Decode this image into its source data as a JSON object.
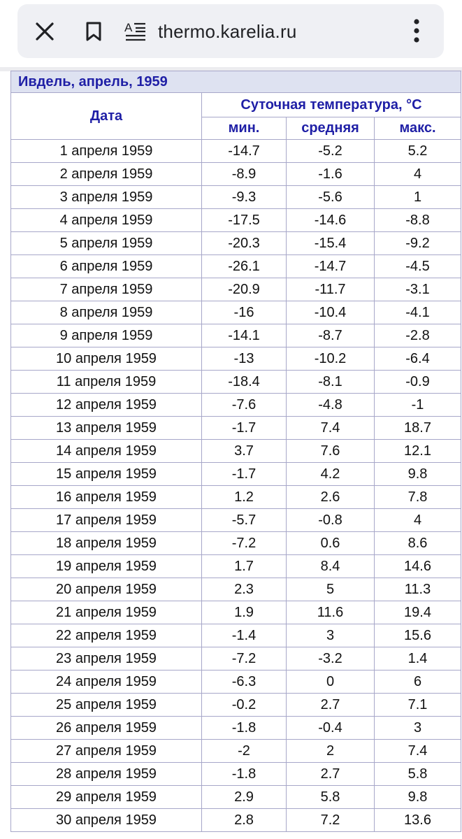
{
  "browser": {
    "url": "thermo.karelia.ru",
    "icons": {
      "close": "close-icon",
      "bookmark": "bookmark-icon",
      "reader": "reader-mode-icon",
      "menu": "more-vert-icon"
    }
  },
  "table": {
    "caption": "Ивдель, апрель, 1959",
    "headers": {
      "date": "Дата",
      "group": "Суточная температура, °C",
      "min": "мин.",
      "avg": "средняя",
      "max": "макс."
    },
    "rows": [
      {
        "date": "1 апреля 1959",
        "min": "-14.7",
        "avg": "-5.2",
        "max": "5.2"
      },
      {
        "date": "2 апреля 1959",
        "min": "-8.9",
        "avg": "-1.6",
        "max": "4"
      },
      {
        "date": "3 апреля 1959",
        "min": "-9.3",
        "avg": "-5.6",
        "max": "1"
      },
      {
        "date": "4 апреля 1959",
        "min": "-17.5",
        "avg": "-14.6",
        "max": "-8.8"
      },
      {
        "date": "5 апреля 1959",
        "min": "-20.3",
        "avg": "-15.4",
        "max": "-9.2"
      },
      {
        "date": "6 апреля 1959",
        "min": "-26.1",
        "avg": "-14.7",
        "max": "-4.5"
      },
      {
        "date": "7 апреля 1959",
        "min": "-20.9",
        "avg": "-11.7",
        "max": "-3.1"
      },
      {
        "date": "8 апреля 1959",
        "min": "-16",
        "avg": "-10.4",
        "max": "-4.1"
      },
      {
        "date": "9 апреля 1959",
        "min": "-14.1",
        "avg": "-8.7",
        "max": "-2.8"
      },
      {
        "date": "10 апреля 1959",
        "min": "-13",
        "avg": "-10.2",
        "max": "-6.4"
      },
      {
        "date": "11 апреля 1959",
        "min": "-18.4",
        "avg": "-8.1",
        "max": "-0.9"
      },
      {
        "date": "12 апреля 1959",
        "min": "-7.6",
        "avg": "-4.8",
        "max": "-1"
      },
      {
        "date": "13 апреля 1959",
        "min": "-1.7",
        "avg": "7.4",
        "max": "18.7"
      },
      {
        "date": "14 апреля 1959",
        "min": "3.7",
        "avg": "7.6",
        "max": "12.1"
      },
      {
        "date": "15 апреля 1959",
        "min": "-1.7",
        "avg": "4.2",
        "max": "9.8"
      },
      {
        "date": "16 апреля 1959",
        "min": "1.2",
        "avg": "2.6",
        "max": "7.8"
      },
      {
        "date": "17 апреля 1959",
        "min": "-5.7",
        "avg": "-0.8",
        "max": "4"
      },
      {
        "date": "18 апреля 1959",
        "min": "-7.2",
        "avg": "0.6",
        "max": "8.6"
      },
      {
        "date": "19 апреля 1959",
        "min": "1.7",
        "avg": "8.4",
        "max": "14.6"
      },
      {
        "date": "20 апреля 1959",
        "min": "2.3",
        "avg": "5",
        "max": "11.3"
      },
      {
        "date": "21 апреля 1959",
        "min": "1.9",
        "avg": "11.6",
        "max": "19.4"
      },
      {
        "date": "22 апреля 1959",
        "min": "-1.4",
        "avg": "3",
        "max": "15.6"
      },
      {
        "date": "23 апреля 1959",
        "min": "-7.2",
        "avg": "-3.2",
        "max": "1.4"
      },
      {
        "date": "24 апреля 1959",
        "min": "-6.3",
        "avg": "0",
        "max": "6"
      },
      {
        "date": "25 апреля 1959",
        "min": "-0.2",
        "avg": "2.7",
        "max": "7.1"
      },
      {
        "date": "26 апреля 1959",
        "min": "-1.8",
        "avg": "-0.4",
        "max": "3"
      },
      {
        "date": "27 апреля 1959",
        "min": "-2",
        "avg": "2",
        "max": "7.4"
      },
      {
        "date": "28 апреля 1959",
        "min": "-1.8",
        "avg": "2.7",
        "max": "5.8"
      },
      {
        "date": "29 апреля 1959",
        "min": "2.9",
        "avg": "5.8",
        "max": "9.8"
      },
      {
        "date": "30 апреля 1959",
        "min": "2.8",
        "avg": "7.2",
        "max": "13.6"
      }
    ]
  },
  "colors": {
    "header_text": "#1f1fa6",
    "caption_bg": "#dee2f1",
    "border": "#a7a7c9",
    "urlbar_bg": "#eff0f4"
  }
}
